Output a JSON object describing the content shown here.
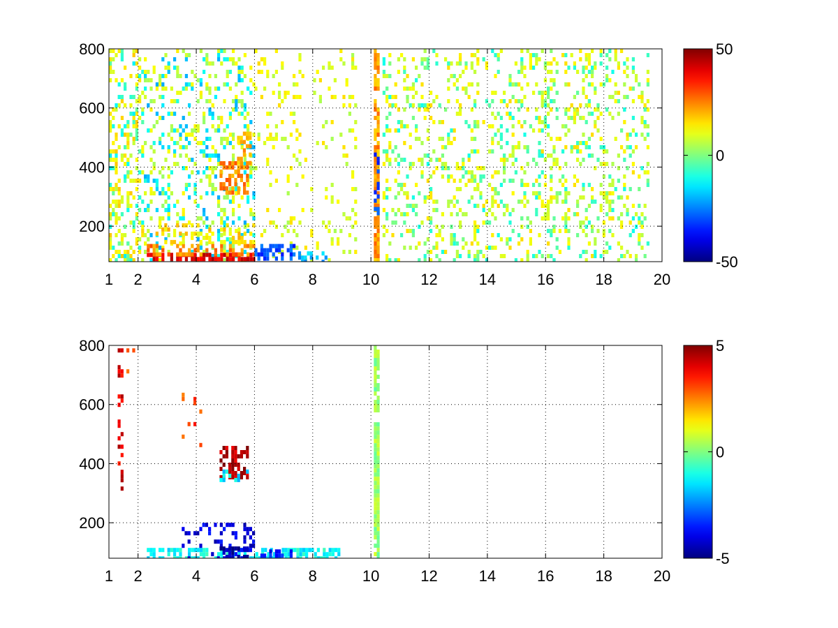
{
  "chart_data": [
    {
      "type": "heatmap",
      "title": "",
      "xlabel": "",
      "ylabel": "",
      "xlim": [
        1,
        20
      ],
      "ylim": [
        80,
        800
      ],
      "x_ticks": [
        1,
        2,
        4,
        6,
        8,
        10,
        12,
        14,
        16,
        18,
        20
      ],
      "y_ticks": [
        200,
        400,
        600,
        800
      ],
      "grid": true,
      "colormap": "jet",
      "colorbar": {
        "min": -50,
        "max": 50,
        "ticks": [
          50,
          0,
          -50
        ],
        "placement": "right"
      },
      "blobs": [
        {
          "x": [
            1.0,
            2.2
          ],
          "y": [
            80,
            800
          ],
          "value": 12,
          "density": 0.3
        },
        {
          "x": [
            1.0,
            2.2
          ],
          "y": [
            80,
            800
          ],
          "value": -8,
          "density": 0.1
        },
        {
          "x": [
            2.2,
            6.0
          ],
          "y": [
            80,
            800
          ],
          "value": 8,
          "density": 0.18
        },
        {
          "x": [
            2.2,
            6.0
          ],
          "y": [
            80,
            800
          ],
          "value": -15,
          "density": 0.1
        },
        {
          "x": [
            2.3,
            6.0
          ],
          "y": [
            85,
            110
          ],
          "value": 40,
          "density": 0.75
        },
        {
          "x": [
            2.3,
            6.0
          ],
          "y": [
            110,
            140
          ],
          "value": 25,
          "density": 0.5
        },
        {
          "x": [
            2.5,
            6.0
          ],
          "y": [
            140,
            210
          ],
          "value": 15,
          "density": 0.3
        },
        {
          "x": [
            4.8,
            5.8
          ],
          "y": [
            320,
            420
          ],
          "value": 25,
          "density": 0.55
        },
        {
          "x": [
            5.4,
            5.9
          ],
          "y": [
            420,
            520
          ],
          "value": 20,
          "density": 0.5
        },
        {
          "x": [
            6.0,
            9.5
          ],
          "y": [
            80,
            800
          ],
          "value": 10,
          "density": 0.1
        },
        {
          "x": [
            6.0,
            7.5
          ],
          "y": [
            85,
            140
          ],
          "value": -30,
          "density": 0.6
        },
        {
          "x": [
            7.5,
            8.5
          ],
          "y": [
            85,
            115
          ],
          "value": -20,
          "density": 0.45
        },
        {
          "x": [
            10.1,
            10.3
          ],
          "y": [
            80,
            800
          ],
          "value": 22,
          "density": 0.85
        },
        {
          "x": [
            10.1,
            10.3
          ],
          "y": [
            250,
            520
          ],
          "value": -30,
          "density": 0.4
        },
        {
          "x": [
            10.4,
            19.5
          ],
          "y": [
            80,
            800
          ],
          "value": 10,
          "density": 0.15
        },
        {
          "x": [
            10.4,
            19.5
          ],
          "y": [
            80,
            800
          ],
          "value": -5,
          "density": 0.08
        }
      ]
    },
    {
      "type": "heatmap",
      "title": "",
      "xlabel": "",
      "ylabel": "",
      "xlim": [
        1,
        20
      ],
      "ylim": [
        80,
        800
      ],
      "x_ticks": [
        1,
        2,
        4,
        6,
        8,
        10,
        12,
        14,
        16,
        18,
        20
      ],
      "y_ticks": [
        200,
        400,
        600,
        800
      ],
      "grid": true,
      "colormap": "jet",
      "colorbar": {
        "min": -5,
        "max": 5,
        "ticks": [
          5,
          0,
          -5
        ],
        "placement": "right"
      },
      "blobs": [
        {
          "x": [
            1.3,
            1.5
          ],
          "y": [
            320,
            790
          ],
          "value": 4,
          "density": 0.35
        },
        {
          "x": [
            1.6,
            1.9
          ],
          "y": [
            700,
            790
          ],
          "value": 3,
          "density": 0.2
        },
        {
          "x": [
            3.5,
            4.2
          ],
          "y": [
            400,
            640
          ],
          "value": 3,
          "density": 0.08
        },
        {
          "x": [
            4.8,
            5.8
          ],
          "y": [
            360,
            460
          ],
          "value": 4.5,
          "density": 0.5
        },
        {
          "x": [
            4.8,
            5.8
          ],
          "y": [
            340,
            380
          ],
          "value": -1.5,
          "density": 0.4
        },
        {
          "x": [
            2.3,
            9.0
          ],
          "y": [
            85,
            115
          ],
          "value": -1.2,
          "density": 0.6
        },
        {
          "x": [
            3.5,
            6.0
          ],
          "y": [
            85,
            200
          ],
          "value": -4,
          "density": 0.22
        },
        {
          "x": [
            4.8,
            5.8
          ],
          "y": [
            85,
            120
          ],
          "value": -4.5,
          "density": 0.6
        },
        {
          "x": [
            6.2,
            7.3
          ],
          "y": [
            85,
            110
          ],
          "value": -3.5,
          "density": 0.5
        },
        {
          "x": [
            10.1,
            10.3
          ],
          "y": [
            80,
            540
          ],
          "value": 0.3,
          "density": 0.95
        },
        {
          "x": [
            10.1,
            10.3
          ],
          "y": [
            580,
            800
          ],
          "value": 0.2,
          "density": 0.85
        }
      ]
    }
  ]
}
